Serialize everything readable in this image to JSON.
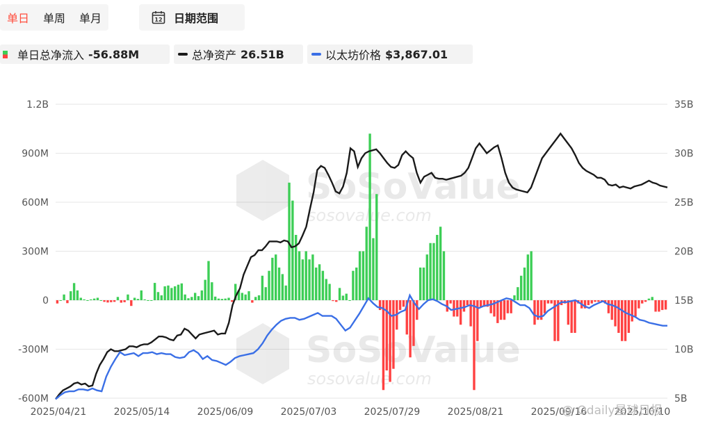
{
  "tabs": {
    "daily": "单日",
    "weekly": "单周",
    "monthly": "单月"
  },
  "date_range": {
    "label": "日期范围",
    "icon": "calendar-icon",
    "icon_day": "12"
  },
  "legend": {
    "flow": {
      "label": "单日总净流入",
      "value": "-56.88M"
    },
    "nav": {
      "label": "总净资产",
      "value": "26.51B"
    },
    "eth": {
      "label": "以太坊价格",
      "value": "$3,867.01"
    }
  },
  "colors": {
    "inflow": "#3dce56",
    "outflow": "#ff4141",
    "nav": "#1a1a1a",
    "eth": "#3a6fe6",
    "active_tab": "#ff4d3d"
  },
  "watermark": {
    "text": "SoSoValue",
    "sub": "sosovalue.com"
  },
  "corner_mark": "@ Odaily星球日报",
  "chart_data": {
    "type": "bar",
    "x_ticks": [
      "2025/04/21",
      "2025/05/14",
      "2025/06/09",
      "2025/07/03",
      "2025/07/29",
      "2025/08/21",
      "2025/09/16",
      "2025/10/10"
    ],
    "y_left": {
      "min": -600,
      "max": 1200,
      "ticks": [
        "-600M",
        "-300M",
        "0",
        "300M",
        "600M",
        "900M",
        "1.2B"
      ]
    },
    "y_right": {
      "min": 5,
      "max": 35,
      "ticks": [
        "5B",
        "10B",
        "15B",
        "20B",
        "25B",
        "30B",
        "35B"
      ]
    },
    "grid": true,
    "series": [
      {
        "name": "单日总净流入",
        "unit": "M",
        "axis": "left",
        "values": [
          -20,
          0,
          35,
          -18,
          55,
          105,
          60,
          15,
          5,
          0,
          5,
          10,
          15,
          0,
          -10,
          -14,
          -12,
          -10,
          20,
          -15,
          -12,
          35,
          -35,
          15,
          8,
          60,
          5,
          0,
          0,
          106,
          50,
          30,
          85,
          90,
          75,
          85,
          95,
          103,
          35,
          12,
          20,
          45,
          25,
          60,
          125,
          240,
          110,
          22,
          10,
          8,
          10,
          15,
          -10,
          100,
          60,
          45,
          35,
          55,
          -15,
          20,
          30,
          150,
          80,
          180,
          260,
          280,
          200,
          160,
          90,
          720,
          610,
          400,
          300,
          250,
          300,
          250,
          280,
          200,
          220,
          180,
          130,
          100,
          -5,
          -10,
          75,
          28,
          40,
          0,
          180,
          200,
          300,
          300,
          450,
          1020,
          380,
          650,
          -60,
          -550,
          -430,
          -500,
          -420,
          -180,
          -60,
          -40,
          -210,
          -350,
          -280,
          -120,
          200,
          200,
          280,
          350,
          350,
          400,
          450,
          300,
          -70,
          -20,
          -100,
          -100,
          -150,
          -70,
          -30,
          -160,
          -550,
          -250,
          -40,
          -40,
          -40,
          -80,
          -100,
          -140,
          -120,
          -120,
          -80,
          -80,
          30,
          80,
          150,
          200,
          280,
          300,
          -150,
          -120,
          -120,
          -80,
          -20,
          -20,
          -250,
          -250,
          -30,
          -20,
          -150,
          -200,
          -200,
          -20,
          -50,
          -50,
          -30,
          -20,
          -10,
          -10,
          -10,
          -20,
          -80,
          -120,
          -160,
          -200,
          -250,
          -250,
          -200,
          -130,
          -100,
          -50,
          -20,
          -10,
          10,
          20,
          -70,
          -70,
          -60,
          -57
        ]
      },
      {
        "name": "总净资产",
        "unit": "B",
        "axis": "right",
        "values": [
          4.9,
          5.4,
          5.8,
          6.0,
          6.2,
          6.5,
          6.6,
          6.4,
          6.5,
          6.2,
          6.3,
          7.5,
          8.4,
          9.0,
          9.7,
          10.0,
          9.8,
          9.8,
          9.9,
          10.0,
          10.3,
          10.3,
          10.2,
          10.4,
          10.5,
          10.5,
          10.7,
          11.0,
          11.3,
          11.3,
          11.2,
          11.0,
          10.9,
          11.4,
          11.5,
          12.1,
          11.9,
          11.5,
          11.1,
          11.5,
          11.6,
          11.7,
          11.8,
          11.9,
          11.5,
          11.6,
          11.6,
          12.7,
          14.5,
          15.5,
          16.2,
          17.6,
          18.5,
          19.4,
          19.6,
          20.1,
          20.1,
          20.5,
          21.0,
          21.0,
          21.0,
          20.9,
          21.1,
          21.0,
          20.4,
          20.5,
          20.8,
          21.6,
          22.5,
          24.3,
          26.0,
          28.3,
          28.7,
          28.5,
          27.8,
          27.0,
          26.1,
          25.9,
          26.6,
          28.0,
          30.5,
          30.2,
          28.6,
          29.5,
          30.0,
          30.2,
          30.3,
          30.4,
          30.0,
          29.5,
          29.0,
          28.6,
          28.5,
          28.8,
          29.8,
          30.2,
          29.8,
          29.5,
          28.0,
          27.0,
          27.6,
          27.8,
          28.0,
          27.5,
          27.4,
          27.4,
          27.3,
          27.4,
          27.5,
          27.6,
          27.7,
          28.0,
          28.5,
          29.5,
          30.5,
          31.0,
          30.5,
          30.0,
          30.3,
          30.6,
          30.8,
          29.5,
          28.0,
          27.0,
          26.5,
          26.3,
          26.2,
          26.1,
          26.0,
          26.5,
          27.5,
          28.5,
          29.5,
          30.0,
          30.5,
          31.0,
          31.5,
          32.0,
          31.5,
          31.0,
          30.5,
          29.8,
          29.0,
          28.5,
          28.2,
          28.0,
          27.8,
          27.5,
          27.5,
          27.3,
          26.8,
          26.7,
          26.8,
          26.5,
          26.6,
          26.5,
          26.4,
          26.6,
          26.7,
          26.8,
          27.0,
          27.2,
          27.0,
          26.9,
          26.7,
          26.6,
          26.51
        ]
      },
      {
        "name": "以太坊价格",
        "unit": "B-axis equivalent",
        "axis": "right",
        "values": [
          4.9,
          5.3,
          5.6,
          5.7,
          5.7,
          5.9,
          5.9,
          5.8,
          6.0,
          5.8,
          5.7,
          7.2,
          8.2,
          9.0,
          9.7,
          9.4,
          9.5,
          9.6,
          9.3,
          9.6,
          9.6,
          9.7,
          9.5,
          9.6,
          9.5,
          9.5,
          9.2,
          9.1,
          9.2,
          9.7,
          9.9,
          9.6,
          9.0,
          9.3,
          8.9,
          8.8,
          8.6,
          8.4,
          8.7,
          9.1,
          9.3,
          9.4,
          9.5,
          9.6,
          10.0,
          10.6,
          11.4,
          12.0,
          12.5,
          12.9,
          13.1,
          13.2,
          13.2,
          13.0,
          13.1,
          13.3,
          13.5,
          13.7,
          13.4,
          13.4,
          13.4,
          13.1,
          12.5,
          11.9,
          12.2,
          12.9,
          13.6,
          14.4,
          15.2,
          14.7,
          14.3,
          14.2,
          13.9,
          13.4,
          13.5,
          13.8,
          14.0,
          15.5,
          14.7,
          14.1,
          14.6,
          15.0,
          15.1,
          14.9,
          14.6,
          14.4,
          14.0,
          14.1,
          14.2,
          14.3,
          14.5,
          14.4,
          14.2,
          14.4,
          14.5,
          14.6,
          14.8,
          15.0,
          15.2,
          15.1,
          14.8,
          14.5,
          14.5,
          14.2,
          13.5,
          13.3,
          13.4,
          13.9,
          14.2,
          14.5,
          14.8,
          14.8,
          14.9,
          15.0,
          14.7,
          14.4,
          14.2,
          14.5,
          14.7,
          14.9,
          14.6,
          14.5,
          14.3,
          14.0,
          13.7,
          13.5,
          13.3,
          13.0,
          12.9,
          12.7,
          12.6,
          12.5,
          12.4,
          12.4
        ]
      }
    ]
  }
}
